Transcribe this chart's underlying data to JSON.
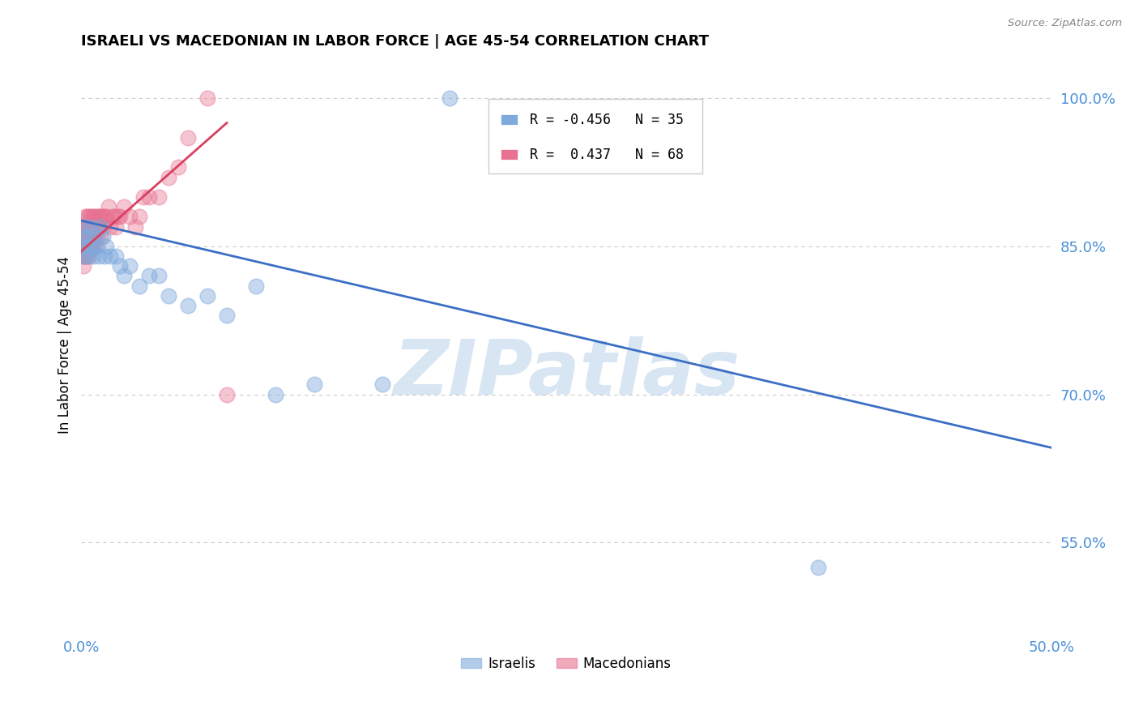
{
  "title": "ISRAELI VS MACEDONIAN IN LABOR FORCE | AGE 45-54 CORRELATION CHART",
  "source": "Source: ZipAtlas.com",
  "ylabel": "In Labor Force | Age 45-54",
  "xlim": [
    0.0,
    0.5
  ],
  "ylim": [
    0.46,
    1.04
  ],
  "israeli_color": "#7faadc",
  "macedonian_color": "#e87090",
  "israeli_r": -0.456,
  "israeli_n": 35,
  "macedonian_r": 0.437,
  "macedonian_n": 68,
  "watermark": "ZIPatlas",
  "watermark_color": "#b8d0e8",
  "grid_color": "#cccccc",
  "tick_color": "#4a90d9",
  "israeli_scatter_x": [
    0.001,
    0.001,
    0.002,
    0.002,
    0.003,
    0.003,
    0.004,
    0.005,
    0.005,
    0.006,
    0.007,
    0.008,
    0.009,
    0.01,
    0.011,
    0.012,
    0.013,
    0.015,
    0.018,
    0.02,
    0.022,
    0.025,
    0.03,
    0.035,
    0.04,
    0.045,
    0.055,
    0.065,
    0.075,
    0.09,
    0.1,
    0.12,
    0.155,
    0.19,
    0.38
  ],
  "israeli_scatter_y": [
    0.86,
    0.84,
    0.85,
    0.87,
    0.86,
    0.84,
    0.85,
    0.87,
    0.85,
    0.84,
    0.86,
    0.85,
    0.84,
    0.87,
    0.86,
    0.84,
    0.85,
    0.84,
    0.84,
    0.83,
    0.82,
    0.83,
    0.81,
    0.82,
    0.82,
    0.8,
    0.79,
    0.8,
    0.78,
    0.81,
    0.7,
    0.71,
    0.71,
    1.0,
    0.525
  ],
  "macedonian_scatter_x": [
    0.001,
    0.001,
    0.001,
    0.001,
    0.001,
    0.001,
    0.002,
    0.002,
    0.002,
    0.002,
    0.002,
    0.002,
    0.002,
    0.003,
    0.003,
    0.003,
    0.003,
    0.003,
    0.003,
    0.003,
    0.004,
    0.004,
    0.004,
    0.004,
    0.004,
    0.005,
    0.005,
    0.005,
    0.005,
    0.005,
    0.006,
    0.006,
    0.006,
    0.006,
    0.007,
    0.007,
    0.007,
    0.007,
    0.008,
    0.008,
    0.008,
    0.009,
    0.009,
    0.01,
    0.01,
    0.011,
    0.011,
    0.012,
    0.013,
    0.014,
    0.015,
    0.016,
    0.017,
    0.018,
    0.019,
    0.02,
    0.022,
    0.025,
    0.028,
    0.03,
    0.032,
    0.035,
    0.04,
    0.045,
    0.05,
    0.055,
    0.065,
    0.075
  ],
  "macedonian_scatter_y": [
    0.86,
    0.85,
    0.84,
    0.87,
    0.83,
    0.85,
    0.88,
    0.86,
    0.85,
    0.84,
    0.87,
    0.85,
    0.84,
    0.88,
    0.86,
    0.85,
    0.87,
    0.86,
    0.84,
    0.85,
    0.87,
    0.85,
    0.84,
    0.88,
    0.86,
    0.88,
    0.86,
    0.85,
    0.87,
    0.86,
    0.87,
    0.86,
    0.85,
    0.88,
    0.88,
    0.86,
    0.85,
    0.87,
    0.88,
    0.86,
    0.87,
    0.88,
    0.87,
    0.88,
    0.86,
    0.88,
    0.87,
    0.88,
    0.88,
    0.89,
    0.87,
    0.88,
    0.88,
    0.87,
    0.88,
    0.88,
    0.89,
    0.88,
    0.87,
    0.88,
    0.9,
    0.9,
    0.9,
    0.92,
    0.93,
    0.96,
    1.0,
    0.7
  ],
  "blue_trend_x": [
    0.0,
    0.5
  ],
  "blue_trend_y": [
    0.876,
    0.646
  ],
  "pink_trend_x": [
    0.0,
    0.075
  ],
  "pink_trend_y": [
    0.845,
    0.975
  ],
  "y_tick_vals": [
    0.55,
    0.7,
    0.85,
    1.0
  ],
  "y_tick_labels": [
    "55.0%",
    "70.0%",
    "85.0%",
    "100.0%"
  ],
  "x_tick_vals": [
    0.0,
    0.05,
    0.1,
    0.15,
    0.2,
    0.25,
    0.3,
    0.35,
    0.4,
    0.45,
    0.5
  ],
  "x_tick_labels": [
    "0.0%",
    "",
    "",
    "",
    "",
    "",
    "",
    "",
    "",
    "",
    "50.0%"
  ]
}
